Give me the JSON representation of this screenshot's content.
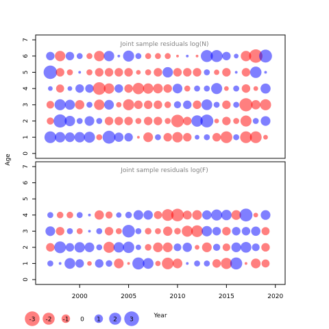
{
  "chart_data": {
    "type": "scatter",
    "ylabel": "Age",
    "xlabel": "Year",
    "xlim": [
      1995.5,
      2021
    ],
    "x_ticks": [
      "2000",
      "2005",
      "2010",
      "2015",
      "2020"
    ],
    "colors": {
      "positive": "#0000ff",
      "negative": "#ff0000"
    },
    "legend": [
      {
        "label": "-3",
        "value": -3
      },
      {
        "label": "-2",
        "value": -2
      },
      {
        "label": "-1",
        "value": -1
      },
      {
        "label": "0",
        "value": 0
      },
      {
        "label": "1",
        "value": 1
      },
      {
        "label": "2",
        "value": 2
      },
      {
        "label": "3",
        "value": 3
      }
    ],
    "years": [
      1997,
      1998,
      1999,
      2000,
      2001,
      2002,
      2003,
      2004,
      2005,
      2006,
      2007,
      2008,
      2009,
      2010,
      2011,
      2012,
      2013,
      2014,
      2015,
      2016,
      2017,
      2018,
      2019
    ],
    "panels": [
      {
        "title": "Joint sample residuals log(N)",
        "ylim": [
          -0.3,
          7.3
        ],
        "y_ticks": [
          "0",
          "1",
          "2",
          "3",
          "4",
          "5",
          "6",
          "7"
        ],
        "residuals": {
          "6": [
            1.0,
            -1.5,
            1.0,
            0.5,
            -0.5,
            -1.5,
            1.5,
            0.1,
            1.7,
            0.5,
            -0.5,
            -0.5,
            -0.5,
            -0.1,
            0.1,
            -0.1,
            2.0,
            2.0,
            1.0,
            0.3,
            -1.5,
            -2.5,
            2.3
          ],
          "5": [
            2.5,
            -1.0,
            -0.5,
            0.1,
            -0.5,
            -1.0,
            -1.0,
            -1.0,
            -1.0,
            -0.3,
            -0.5,
            -1.0,
            1.5,
            -1.0,
            -1.0,
            -1.0,
            0.5,
            -0.4,
            -1.0,
            0.1,
            -1.0,
            1.8,
            0.1
          ],
          "4": [
            0.3,
            -0.9,
            0.3,
            1.0,
            1.0,
            -2.2,
            -1.5,
            1.0,
            -1.0,
            -1.8,
            -1.5,
            -1.3,
            -1.0,
            1.3,
            -0.5,
            0.5,
            0.5,
            1.7,
            -0.3,
            0.5,
            -1.0,
            -0.3,
            1.4
          ],
          "3": [
            -0.8,
            1.7,
            1.4,
            -1.2,
            0.5,
            -1.5,
            1.3,
            -0.4,
            -1.7,
            -1.0,
            -1.0,
            -1.0,
            -0.6,
            0.7,
            1.0,
            -1.0,
            1.6,
            0.5,
            -1.0,
            0.5,
            -2.4,
            -1.2,
            -1.7
          ],
          "2": [
            -0.7,
            2.4,
            1.5,
            0.5,
            1.3,
            0.5,
            -1.0,
            -1.0,
            -1.0,
            -0.5,
            -1.0,
            -1.0,
            -0.5,
            -2.2,
            -1.0,
            1.8,
            2.3,
            -0.3,
            -1.0,
            -0.5,
            -1.7,
            0.5,
            1.3
          ],
          "1": [
            1.9,
            1.5,
            1.3,
            1.5,
            1.7,
            -0.5,
            2.3,
            1.2,
            1.0,
            -0.1,
            -1.3,
            0.5,
            -1.0,
            -1.5,
            -1.0,
            0.3,
            0.5,
            -1.0,
            -1.9,
            0.5,
            -1.9,
            -1.9,
            -0.3
          ]
        }
      },
      {
        "title": "Joint sample residuals log(F)",
        "ylim": [
          -0.3,
          7.3
        ],
        "y_ticks": [
          "0",
          "1",
          "2",
          "3",
          "4",
          "5",
          "6",
          "7"
        ],
        "residuals": {
          "4": [
            0.5,
            -0.6,
            -0.6,
            0.5,
            0.1,
            -1.2,
            -0.7,
            0.4,
            0.6,
            1.3,
            1.2,
            -0.9,
            -1.9,
            -2.2,
            -1.1,
            -1.3,
            1.2,
            1.7,
            1.5,
            -1.3,
            2.3,
            -0.3,
            1.3
          ],
          "3": [
            1.3,
            -1.0,
            0.5,
            -0.5,
            0.1,
            0.5,
            -1.0,
            -0.5,
            2.2,
            0.5,
            -0.6,
            -0.5,
            -1.2,
            -0.6,
            -1.7,
            -1.9,
            1.5,
            1.0,
            -1.0,
            1.0,
            1.0,
            1.2,
            -0.9
          ],
          "2": [
            -1.0,
            1.9,
            1.0,
            1.5,
            1.3,
            0.5,
            -1.7,
            1.5,
            1.8,
            0.4,
            -0.6,
            -1.3,
            -1.3,
            0.8,
            1.2,
            -0.3,
            -1.3,
            0.7,
            -0.8,
            1.3,
            1.6,
            0.8,
            -1.0
          ],
          "1": [
            0.5,
            0.1,
            1.6,
            1.0,
            -0.3,
            1.0,
            0.6,
            -1.3,
            -0.1,
            2.0,
            1.6,
            -0.4,
            -1.9,
            -1.3,
            0.1,
            0.5,
            0.5,
            -1.0,
            -1.7,
            2.0,
            -0.1,
            -1.3,
            -0.9
          ]
        }
      }
    ]
  }
}
